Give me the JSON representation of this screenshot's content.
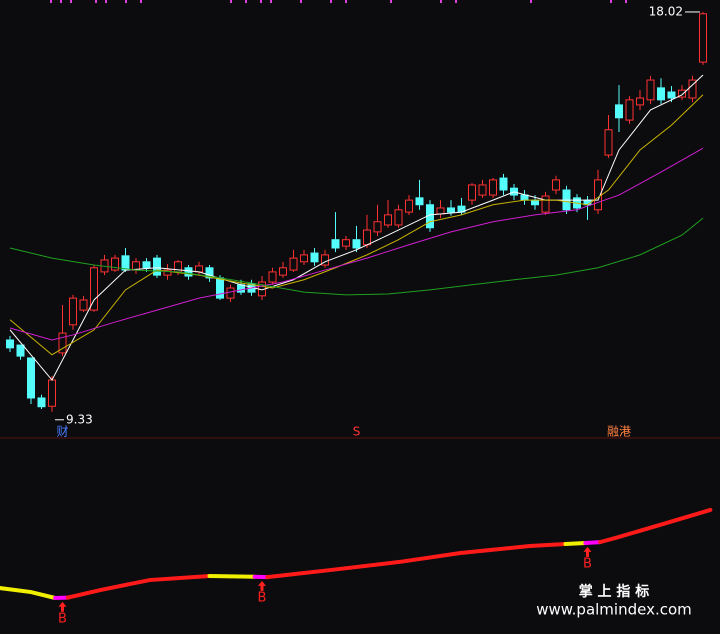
{
  "chart_data": {
    "type": "candlestick",
    "up_color": "#ff3232",
    "down_color": "#54fcfc",
    "ylim": [
      8.76,
      18.28
    ],
    "open": [
      10.89,
      10.78,
      10.5,
      9.63,
      9.45,
      10.61,
      11.22,
      11.54,
      11.54,
      12.37,
      12.41,
      12.72,
      12.41,
      12.59,
      12.67,
      12.3,
      12.37,
      12.46,
      12.37,
      12.46,
      12.24,
      11.8,
      12.09,
      12.11,
      11.85,
      12.15,
      12.3,
      12.41,
      12.59,
      12.78,
      12.52,
      13.07,
      12.93,
      13.07,
      12.96,
      13.24,
      13.39,
      13.39,
      13.67,
      13.98,
      13.83,
      13.63,
      13.76,
      13.8,
      13.93,
      14.04,
      14.04,
      14.41,
      14.19,
      14.04,
      13.93,
      13.67,
      14.15,
      14.15,
      13.98,
      13.93,
      13.72,
      14.91,
      16.0,
      15.67,
      16.0,
      16.11,
      16.37,
      16.28,
      16.17,
      16.15,
      16.93
    ],
    "high": [
      10.98,
      10.78,
      10.5,
      9.7,
      10.11,
      11.65,
      11.87,
      11.85,
      12.52,
      12.74,
      12.74,
      12.89,
      12.67,
      12.67,
      12.74,
      12.54,
      12.63,
      12.52,
      12.59,
      12.52,
      12.3,
      12.09,
      12.2,
      12.2,
      12.28,
      12.46,
      12.59,
      12.85,
      12.85,
      12.89,
      12.85,
      13.67,
      13.15,
      13.37,
      13.61,
      13.83,
      13.93,
      13.83,
      14.04,
      14.37,
      13.93,
      13.93,
      13.93,
      13.98,
      14.3,
      14.37,
      14.41,
      14.5,
      14.28,
      14.15,
      14.04,
      14.11,
      14.46,
      14.24,
      14.06,
      14.02,
      14.59,
      15.78,
      16.43,
      16.19,
      16.32,
      16.63,
      16.58,
      16.41,
      16.43,
      16.63,
      18.02
    ],
    "low": [
      10.63,
      10.46,
      9.5,
      9.39,
      9.33,
      10.54,
      11.11,
      11.5,
      11.5,
      12.3,
      12.37,
      12.37,
      12.33,
      12.37,
      12.24,
      12.2,
      12.3,
      12.2,
      12.28,
      12.15,
      11.76,
      11.72,
      11.87,
      11.85,
      11.76,
      12.09,
      12.24,
      12.37,
      12.52,
      12.5,
      12.46,
      12.8,
      12.85,
      12.8,
      12.89,
      13.15,
      13.33,
      13.33,
      13.61,
      13.72,
      13.24,
      13.54,
      13.59,
      13.61,
      13.83,
      13.98,
      13.98,
      14.04,
      13.93,
      13.83,
      13.72,
      13.61,
      14.06,
      13.63,
      13.67,
      13.5,
      13.63,
      14.85,
      15.41,
      15.59,
      15.89,
      16.02,
      16.02,
      16.06,
      16.11,
      16.06,
      16.87
    ],
    "close": [
      10.72,
      10.54,
      9.63,
      9.44,
      10.02,
      11.04,
      11.8,
      11.76,
      12.46,
      12.63,
      12.67,
      12.41,
      12.59,
      12.46,
      12.3,
      12.41,
      12.59,
      12.28,
      12.5,
      12.24,
      11.8,
      12.02,
      11.93,
      11.93,
      12.15,
      12.37,
      12.46,
      12.67,
      12.74,
      12.59,
      12.74,
      12.89,
      13.07,
      12.89,
      13.28,
      13.46,
      13.61,
      13.72,
      13.93,
      13.83,
      13.33,
      13.76,
      13.67,
      13.67,
      14.26,
      14.26,
      14.37,
      14.15,
      14.04,
      13.93,
      13.83,
      14.02,
      14.37,
      13.72,
      13.76,
      13.83,
      14.37,
      15.46,
      15.72,
      16.11,
      16.15,
      16.54,
      16.11,
      16.15,
      16.32,
      16.54,
      17.98
    ],
    "moving_averages": [
      {
        "color": "#ffffff",
        "x": [
          0,
          4,
          8,
          11,
          14,
          18,
          22,
          24,
          27,
          30,
          33,
          36,
          40,
          43,
          46,
          48,
          51,
          54,
          56,
          58,
          61,
          64,
          66
        ],
        "values": [
          11.11,
          10.02,
          11.76,
          12.41,
          12.46,
          12.37,
          12.09,
          11.98,
          12.2,
          12.59,
          12.85,
          13.17,
          13.61,
          13.67,
          13.93,
          14.11,
          13.93,
          13.93,
          13.93,
          15.02,
          15.89,
          16.22,
          16.65
        ]
      },
      {
        "color": "#c8b400",
        "x": [
          0,
          4,
          8,
          11,
          14,
          18,
          22,
          25,
          28,
          31,
          34,
          37,
          40,
          43,
          46,
          49,
          52,
          55,
          57,
          60,
          63,
          66
        ],
        "values": [
          11.33,
          10.57,
          11.11,
          11.98,
          12.41,
          12.3,
          12.13,
          12.02,
          12.2,
          12.46,
          12.74,
          13.07,
          13.46,
          13.61,
          13.83,
          13.93,
          13.93,
          13.83,
          14.15,
          15.02,
          15.56,
          16.22
        ]
      },
      {
        "color": "#d020d0",
        "x": [
          0,
          4,
          6,
          10,
          14,
          18,
          22,
          26,
          30,
          34,
          38,
          42,
          46,
          50,
          54,
          58,
          62,
          66
        ],
        "values": [
          11.15,
          10.89,
          11.0,
          11.28,
          11.54,
          11.8,
          11.98,
          12.15,
          12.41,
          12.67,
          12.96,
          13.24,
          13.46,
          13.61,
          13.72,
          14.04,
          14.54,
          15.06
        ]
      },
      {
        "color": "#20a020",
        "x": [
          0,
          4,
          8,
          12,
          16,
          20,
          24,
          28,
          32,
          36,
          40,
          44,
          48,
          52,
          56,
          60,
          64,
          66
        ],
        "values": [
          12.89,
          12.67,
          12.52,
          12.41,
          12.37,
          12.24,
          12.09,
          11.93,
          11.87,
          11.89,
          11.98,
          12.09,
          12.2,
          12.3,
          12.46,
          12.74,
          13.17,
          13.54
        ]
      }
    ],
    "annotations": [
      {
        "value": 18.02,
        "index": 66
      },
      {
        "value": 9.33,
        "index": 4
      }
    ],
    "events": [
      {
        "label": "财",
        "index": 5
      },
      {
        "label": "S",
        "index": 33
      },
      {
        "label": "融港",
        "index": 58
      }
    ],
    "lower": {
      "ylim": [
        0,
        100
      ],
      "pieces": [
        {
          "color": "#f0f000",
          "x": [
            -1,
            2,
            4.3
          ],
          "values": [
            22.7,
            20.5,
            17.3
          ]
        },
        {
          "color": "#ff00ff",
          "x": [
            4.3,
            5.5
          ],
          "values": [
            17.3,
            17.5
          ]
        },
        {
          "color": "#ff1a1a",
          "x": [
            5.5,
            8.6,
            13.3,
            19
          ],
          "values": [
            17.5,
            21.6,
            27,
            29.2
          ]
        },
        {
          "color": "#f0f000",
          "x": [
            19,
            23.3
          ],
          "values": [
            29.2,
            28.8
          ]
        },
        {
          "color": "#ff00ff",
          "x": [
            23.3,
            24.5
          ],
          "values": [
            28.8,
            28.6
          ]
        },
        {
          "color": "#ff1a1a",
          "x": [
            24.5,
            30.5,
            37.1,
            42.9,
            49.5,
            52.9
          ],
          "values": [
            28.6,
            32.4,
            36.8,
            41.6,
            45.4,
            46.5
          ]
        },
        {
          "color": "#f0f000",
          "x": [
            52.9,
            54.8
          ],
          "values": [
            46.5,
            47
          ]
        },
        {
          "color": "#ff00ff",
          "x": [
            54.8,
            56.2
          ],
          "values": [
            47,
            47.5
          ]
        },
        {
          "color": "#ff1a1a",
          "x": [
            56.2,
            58,
            61.9,
            66.7
          ],
          "values": [
            47.5,
            50.3,
            56.8,
            64.9
          ]
        }
      ],
      "signals": [
        {
          "label": "B",
          "index": 5
        },
        {
          "label": "B",
          "index": 24
        },
        {
          "label": "B",
          "index": 55
        }
      ]
    },
    "watermark": {
      "title": "掌 上 指 标",
      "url": "www.palmindex.com"
    }
  }
}
